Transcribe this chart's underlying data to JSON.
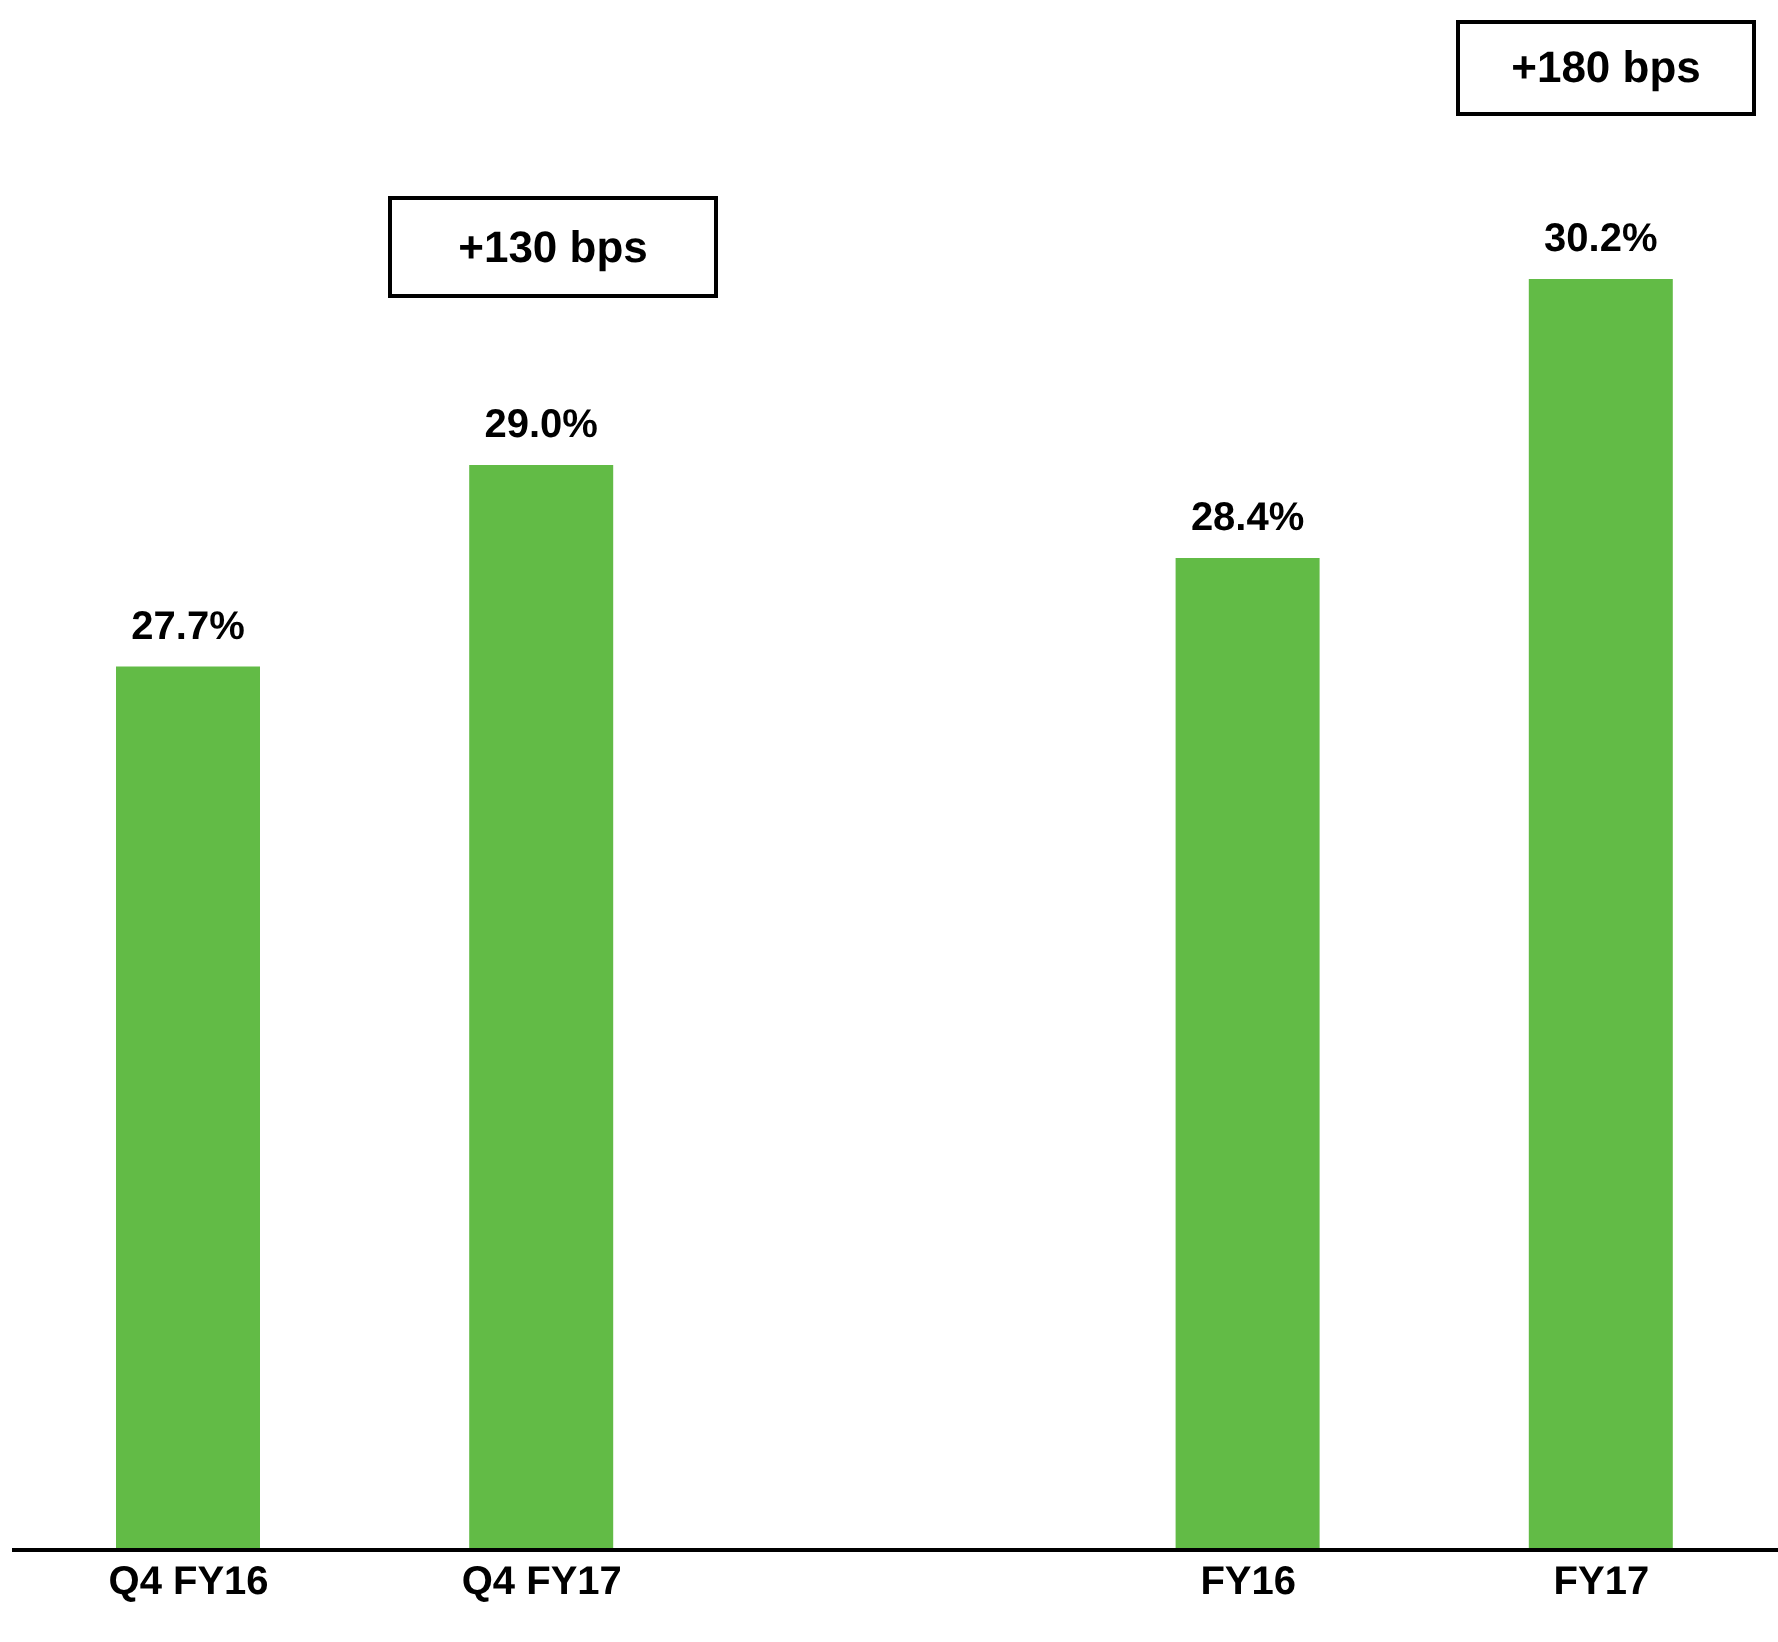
{
  "chart_data": {
    "type": "bar",
    "categories": [
      "Q4 FY16",
      "Q4 FY17",
      null,
      "FY16",
      "FY17"
    ],
    "values": [
      27.7,
      29.0,
      null,
      28.4,
      30.2
    ],
    "value_labels": [
      "27.7%",
      "29.0%",
      null,
      "28.4%",
      "30.2%"
    ],
    "color": "#62bb46",
    "ylim": [
      22,
      32
    ],
    "tick_labels": "x",
    "grid": false,
    "annotations": [
      "+130 bps",
      "+180 bps"
    ]
  }
}
